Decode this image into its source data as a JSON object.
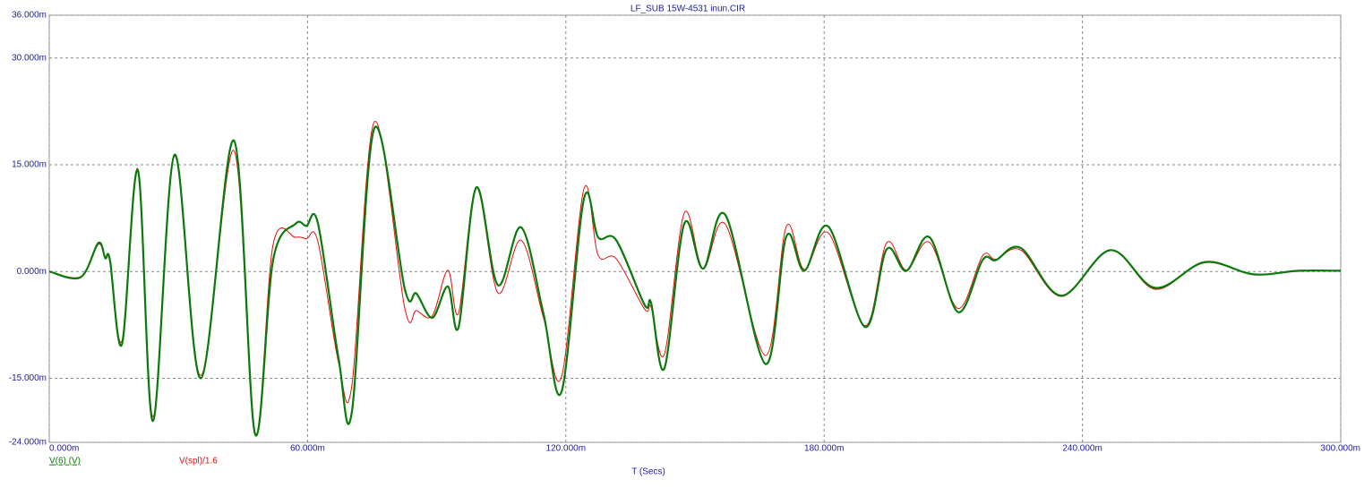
{
  "chart_data": {
    "type": "line",
    "title": "LF_SUB 15W-4531 inun.CIR",
    "x_label": "T (Secs)",
    "x": [
      0,
      7.3,
      11.4,
      13,
      14.1,
      16.9,
      20.6,
      24.1,
      29.1,
      35.2,
      42.9,
      47.8,
      52,
      57.2,
      59.7,
      62.4,
      67.2,
      70.3,
      75.5,
      82.6,
      85.3,
      89,
      92.6,
      95.1,
      99.2,
      104.2,
      109.6,
      114.8,
      119,
      124.2,
      127.5,
      131.7,
      138.3,
      139.8,
      142.9,
      147.5,
      151.9,
      157.1,
      166.4,
      171.2,
      175.4,
      181,
      189.5,
      194.5,
      199.1,
      204.5,
      211.1,
      216.8,
      219.9,
      225.7,
      235.1,
      246.5,
      256.9,
      268.4,
      279.8,
      290.2,
      300
    ],
    "series": [
      {
        "name": "V(spl)/1.6",
        "color": "#e01010",
        "width": 1,
        "values": [
          0,
          -0.7,
          3.8,
          1.8,
          1.5,
          -9.7,
          14.4,
          -20.4,
          16.2,
          -14.6,
          17,
          -23,
          3.8,
          4.8,
          4.6,
          4.2,
          -12.8,
          -16,
          21,
          -5.2,
          -5.5,
          -6.2,
          0.2,
          -5.8,
          11.8,
          -3,
          4.4,
          -6.5,
          -14.8,
          11.6,
          2.3,
          1.8,
          -5.3,
          -5,
          -11.6,
          8.2,
          0.4,
          6.6,
          -11.8,
          6.3,
          0.3,
          5.4,
          -7.6,
          4,
          0.2,
          4.1,
          -5.2,
          2.2,
          1.7,
          3,
          -3.5,
          3,
          -2.5,
          1.4,
          -0.4,
          0.1,
          0.1
        ]
      },
      {
        "name": "V(6) (V)",
        "color": "#0a7a0a",
        "width": 2.2,
        "values": [
          0,
          -0.8,
          4,
          1.9,
          1.6,
          -10.2,
          14.2,
          -21,
          16.4,
          -15,
          18.4,
          -22.8,
          1.6,
          6.7,
          6.4,
          6.8,
          -12.2,
          -19.7,
          20.1,
          -2.5,
          -3.1,
          -6.5,
          -2.1,
          -7.8,
          11.8,
          -1.9,
          6.2,
          -5.9,
          -16.9,
          10.2,
          4.8,
          4.4,
          -4.7,
          -4.4,
          -13.6,
          6.7,
          0.4,
          7.9,
          -13,
          4.9,
          0.1,
          6.3,
          -7.8,
          3.1,
          0.1,
          4.8,
          -5.7,
          1.6,
          1.6,
          3.3,
          -3.4,
          3,
          -2.3,
          1.3,
          -0.4,
          0.1,
          0.1
        ]
      }
    ],
    "xlim": [
      0,
      300
    ],
    "xticks": [
      {
        "value": 0,
        "label": "0.000m"
      },
      {
        "value": 60,
        "label": "60.000m"
      },
      {
        "value": 120,
        "label": "120.000m"
      },
      {
        "value": 180,
        "label": "180.000m"
      },
      {
        "value": 240,
        "label": "240.000m"
      },
      {
        "value": 300,
        "label": "300.000m"
      }
    ],
    "ylim": [
      -24,
      36
    ],
    "yticks": [
      {
        "value": -24,
        "label": "-24.000m"
      },
      {
        "value": -15,
        "label": "-15.000m"
      },
      {
        "value": 0,
        "label": "0.000m"
      },
      {
        "value": 15,
        "label": "15.000m"
      },
      {
        "value": 30,
        "label": "30.000m"
      },
      {
        "value": 36,
        "label": "36.000m"
      }
    ],
    "grid": true
  }
}
